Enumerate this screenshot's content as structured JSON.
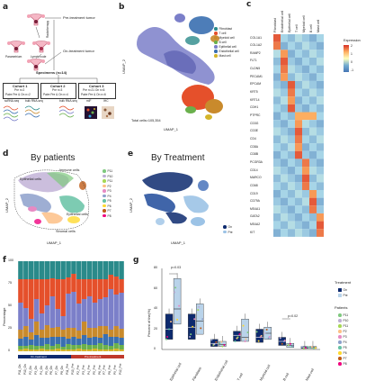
{
  "panels": {
    "a": {
      "letter": "a",
      "pre_label": "Pre-treatment tumor",
      "on_label": "On-treatment tumor",
      "radiation": "Radiotherapy",
      "nodes": [
        "Parametrium",
        "Lymph node"
      ],
      "specimens": "Specimens (n=14)",
      "cohort1": {
        "title": "Cohort 1",
        "line1": "Pre n=2",
        "line2": "Paire Pre & On n=2"
      },
      "cohort2": {
        "title": "Cohort 2",
        "line1": "Pre n=3",
        "line2": "Paire Pre & On n=4"
      },
      "cohort3": {
        "title": "Cohort 3",
        "line1": "Pre n=21 On n=6",
        "line2": "Paire Pre & On n=6"
      },
      "methods": [
        "scRNA-seq",
        "bulk RNA-seq",
        "bulk RNA-seq",
        "mIF",
        "IHC"
      ]
    },
    "b": {
      "letter": "b",
      "xlabel": "UMAP_1",
      "ylabel": "UMAP_2",
      "total": "Total cells=105,354",
      "legend": [
        {
          "name": "Fibroblast",
          "color": "#2a8a8a"
        },
        {
          "name": "T cell",
          "color": "#e5502b"
        },
        {
          "name": "Myeloid cell",
          "color": "#c98a2c"
        },
        {
          "name": "B cell",
          "color": "#6ab04c"
        },
        {
          "name": "Epithelial cell",
          "color": "#7b7fc9"
        },
        {
          "name": "Endothelial cell",
          "color": "#3a6fb0"
        },
        {
          "name": "Mast cell",
          "color": "#d4b52a"
        }
      ]
    },
    "c": {
      "letter": "c",
      "columns": [
        "Fibroblast",
        "Endothelial cell",
        "Epithelial cell",
        "T cell",
        "Myeloid cell",
        "B cell",
        "Mast cell"
      ],
      "genes": [
        "COL1A1",
        "COL1A2",
        "RAMP2",
        "FLT1",
        "CLDN5",
        "PECAM1",
        "EPCAM",
        "KRT5",
        "KRT14",
        "CDH1",
        "PTPRC",
        "CD3G",
        "CD3E",
        "CD4",
        "CD8A",
        "CD8B",
        "PCGR3A",
        "CD14",
        "MARCO",
        "CD68",
        "CD19",
        "CD79A",
        "MS4A1",
        "GATA2",
        "MS4A2",
        "KIT"
      ],
      "legend_title": "Expression",
      "legend_ticks": [
        "2",
        "1",
        "0",
        "-1"
      ]
    },
    "d": {
      "letter": "d",
      "title": "By patients",
      "xlabel": "UMAP_1",
      "ylabel": "UMAP_2",
      "annotations": [
        "Immune cells",
        "Epithelial cells",
        "Epithelial cells",
        "Stromal cells"
      ],
      "legend": [
        {
          "name": "P11",
          "color": "#7fc97f"
        },
        {
          "name": "P10",
          "color": "#beaed4"
        },
        {
          "name": "P11",
          "color": "#a6d854"
        },
        {
          "name": "P2",
          "color": "#fdc086"
        },
        {
          "name": "P3",
          "color": "#e78ac3"
        },
        {
          "name": "P4",
          "color": "#8da0cb"
        },
        {
          "name": "P5",
          "color": "#66c2a5"
        },
        {
          "name": "P6",
          "color": "#ffd92f"
        },
        {
          "name": "P7",
          "color": "#bf5b17"
        },
        {
          "name": "P8",
          "color": "#f0027f"
        }
      ]
    },
    "e": {
      "letter": "e",
      "title": "By Treatment",
      "xlabel": "UMAP_1",
      "ylabel": "UMAP_2",
      "legend": [
        {
          "name": "On",
          "color": "#0d2a6e"
        },
        {
          "name": "Pre",
          "color": "#9cc3e6"
        }
      ]
    },
    "f": {
      "letter": "f",
      "ylabel": "Percentage",
      "yticks": [
        "100",
        "75",
        "50",
        "25",
        "0"
      ],
      "groups": [
        "On-treatment",
        "Pre-treatment"
      ]
    },
    "g": {
      "letter": "g",
      "ylabel": "Percent of the(%)",
      "yticks": [
        "80",
        "60",
        "40",
        "20",
        "0"
      ],
      "pvals": [
        "p=0.03",
        "p=0.02"
      ],
      "treatment_title": "Treatment",
      "treatment": [
        {
          "name": "On",
          "color": "#0d2a6e"
        },
        {
          "name": "Pre",
          "color": "#b9d3ea"
        }
      ],
      "patients_title": "Patients",
      "patients": [
        {
          "name": "P11",
          "color": "#7fc97f"
        },
        {
          "name": "P10",
          "color": "#beaed4"
        },
        {
          "name": "P11",
          "color": "#a6d854"
        },
        {
          "name": "P2",
          "color": "#fdc086"
        },
        {
          "name": "P3",
          "color": "#e78ac3"
        },
        {
          "name": "P4",
          "color": "#8da0cb"
        },
        {
          "name": "P5",
          "color": "#66c2a5"
        },
        {
          "name": "P6",
          "color": "#ffd92f"
        },
        {
          "name": "P7",
          "color": "#bf5b17"
        },
        {
          "name": "P8",
          "color": "#f0027f"
        }
      ]
    }
  },
  "chart_data": [
    {
      "type": "bar",
      "categories": [
        "P11_On",
        "P10_On",
        "P2_On",
        "P3_On",
        "P4_On",
        "P5_On",
        "P6_On",
        "P7_On",
        "P8_On",
        "P11_Pre",
        "P10_Pre",
        "P2_Pre",
        "P3_Pre",
        "P4_Pre",
        "P5_Pre",
        "P6_Pre",
        "P7_Pre",
        "P8_Pre",
        "P9_Pre",
        "P12_Pre"
      ],
      "ylabel": "Percentage",
      "ylim": [
        0,
        100
      ],
      "series": [
        {
          "name": "Mast cell",
          "color": "#d4b52a",
          "values": [
            2,
            3,
            2,
            2,
            3,
            2,
            2,
            3,
            2,
            2,
            2,
            3,
            2,
            2,
            3,
            2,
            2,
            2,
            3,
            2
          ]
        },
        {
          "name": "B cell",
          "color": "#6ab04c",
          "values": [
            4,
            3,
            5,
            4,
            3,
            6,
            4,
            5,
            3,
            6,
            5,
            4,
            6,
            5,
            4,
            7,
            5,
            4,
            6,
            5
          ]
        },
        {
          "name": "Endothelial cell",
          "color": "#3a6fb0",
          "values": [
            8,
            10,
            6,
            12,
            9,
            7,
            10,
            8,
            11,
            6,
            9,
            7,
            10,
            8,
            9,
            6,
            12,
            10,
            7,
            8
          ]
        },
        {
          "name": "Myeloid cell",
          "color": "#c98a2c",
          "values": [
            10,
            12,
            8,
            15,
            9,
            14,
            10,
            11,
            8,
            12,
            10,
            9,
            15,
            11,
            10,
            13,
            9,
            8,
            12,
            10
          ]
        },
        {
          "name": "Epithelial cell",
          "color": "#7b7fc9",
          "values": [
            30,
            20,
            15,
            25,
            18,
            22,
            35,
            20,
            15,
            38,
            40,
            30,
            25,
            35,
            28,
            30,
            32,
            45,
            35,
            40
          ]
        },
        {
          "name": "T cell",
          "color": "#e5502b",
          "values": [
            26,
            32,
            44,
            22,
            38,
            29,
            20,
            33,
            41,
            18,
            20,
            27,
            22,
            19,
            26,
            22,
            20,
            16,
            20,
            15
          ]
        },
        {
          "name": "Fibroblast",
          "color": "#2a8a8a",
          "values": [
            20,
            20,
            20,
            20,
            20,
            20,
            19,
            20,
            20,
            18,
            14,
            20,
            20,
            20,
            20,
            20,
            20,
            15,
            17,
            20
          ]
        }
      ]
    },
    {
      "type": "box",
      "categories": [
        "Epithelial cell",
        "Fibroblast",
        "Endothelial cell",
        "T cell",
        "Myeloid cell",
        "B cell",
        "Mast cell"
      ],
      "ylabel": "Percent of the(%)",
      "ylim": [
        0,
        80
      ],
      "series": [
        {
          "name": "On",
          "color": "#0d2a6e",
          "medians": [
            20,
            22,
            6,
            14,
            12,
            8,
            2
          ],
          "q1": [
            10,
            10,
            3,
            8,
            7,
            4,
            1
          ],
          "q3": [
            35,
            35,
            10,
            18,
            20,
            12,
            3
          ]
        },
        {
          "name": "Pre",
          "color": "#b9d3ea",
          "medians": [
            40,
            28,
            5,
            12,
            16,
            4,
            2
          ],
          "q1": [
            25,
            15,
            3,
            8,
            10,
            2,
            1
          ],
          "q3": [
            70,
            45,
            8,
            30,
            22,
            6,
            3
          ]
        }
      ]
    }
  ]
}
